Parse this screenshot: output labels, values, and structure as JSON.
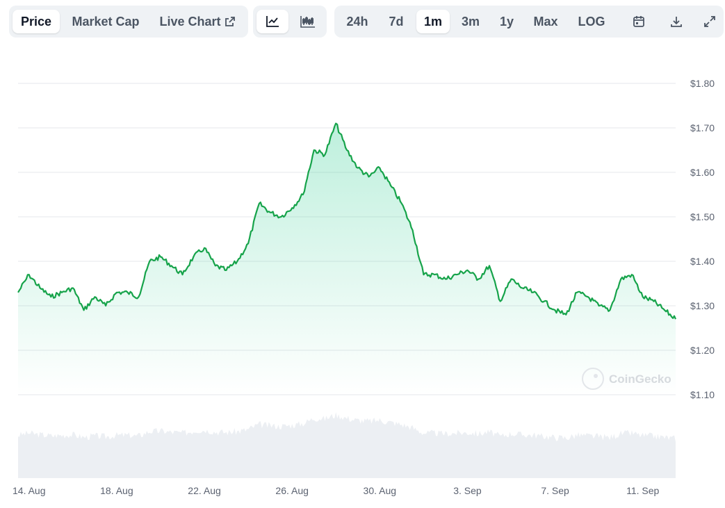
{
  "toolbar": {
    "metric_tabs": [
      {
        "label": "Price",
        "active": true
      },
      {
        "label": "Market Cap",
        "active": false
      },
      {
        "label": "Live Chart",
        "active": false,
        "icon": "external-link-icon"
      }
    ],
    "chart_type_buttons": [
      {
        "icon": "line-chart-icon",
        "active": true
      },
      {
        "icon": "candlestick-icon",
        "active": false
      }
    ],
    "ranges": [
      {
        "label": "24h",
        "active": false
      },
      {
        "label": "7d",
        "active": false
      },
      {
        "label": "1m",
        "active": true
      },
      {
        "label": "3m",
        "active": false
      },
      {
        "label": "1y",
        "active": false
      },
      {
        "label": "Max",
        "active": false
      },
      {
        "label": "LOG",
        "active": false
      }
    ],
    "tools": [
      {
        "icon": "calendar-icon"
      },
      {
        "icon": "download-icon"
      },
      {
        "icon": "expand-icon"
      }
    ]
  },
  "watermark": "CoinGecko",
  "colors": {
    "line": "#16a34a",
    "area_top": "#16c784",
    "volume": "#eceff3",
    "grid": "#e5e7eb",
    "active_bg": "#ffffff",
    "toolbar_bg": "#eff2f5"
  },
  "chart_data": {
    "type": "line",
    "title": "",
    "xlabel": "",
    "ylabel": "",
    "ylim": [
      1.1,
      1.8
    ],
    "y_ticks": [
      "$1.80",
      "$1.70",
      "$1.60",
      "$1.50",
      "$1.40",
      "$1.30",
      "$1.20",
      "$1.10"
    ],
    "y_tick_values": [
      1.8,
      1.7,
      1.6,
      1.5,
      1.4,
      1.3,
      1.2,
      1.1
    ],
    "x_range": [
      "2024-08-13T12:00",
      "2024-09-12T12:00"
    ],
    "x_ticks": [
      "14. Aug",
      "18. Aug",
      "22. Aug",
      "26. Aug",
      "30. Aug",
      "3. Sep",
      "7. Sep",
      "11. Sep"
    ],
    "x_tick_dates": [
      "2024-08-14",
      "2024-08-18",
      "2024-08-22",
      "2024-08-26",
      "2024-08-30",
      "2024-09-03",
      "2024-09-07",
      "2024-09-11"
    ],
    "grid": true,
    "legend": "none",
    "series": [
      {
        "x": [
          "2024-08-13T12:00",
          "2024-08-14T00:00",
          "2024-08-14T12:00",
          "2024-08-15T00:00",
          "2024-08-15T12:00",
          "2024-08-16T00:00",
          "2024-08-16T12:00",
          "2024-08-17T00:00",
          "2024-08-17T12:00",
          "2024-08-18T00:00",
          "2024-08-18T12:00",
          "2024-08-19T00:00",
          "2024-08-19T12:00",
          "2024-08-20T00:00",
          "2024-08-20T12:00",
          "2024-08-21T00:00",
          "2024-08-21T12:00",
          "2024-08-22T00:00",
          "2024-08-22T12:00",
          "2024-08-23T00:00",
          "2024-08-23T12:00",
          "2024-08-24T00:00",
          "2024-08-24T12:00",
          "2024-08-25T00:00",
          "2024-08-25T12:00",
          "2024-08-26T00:00",
          "2024-08-26T12:00",
          "2024-08-27T00:00",
          "2024-08-27T12:00",
          "2024-08-28T00:00",
          "2024-08-28T12:00",
          "2024-08-29T00:00",
          "2024-08-29T12:00",
          "2024-08-30T00:00",
          "2024-08-30T12:00",
          "2024-08-31T00:00",
          "2024-08-31T12:00",
          "2024-09-01T00:00",
          "2024-09-01T12:00",
          "2024-09-02T00:00",
          "2024-09-02T12:00",
          "2024-09-03T00:00",
          "2024-09-03T12:00",
          "2024-09-04T00:00",
          "2024-09-04T12:00",
          "2024-09-05T00:00",
          "2024-09-05T12:00",
          "2024-09-06T00:00",
          "2024-09-06T12:00",
          "2024-09-07T00:00",
          "2024-09-07T12:00",
          "2024-09-08T00:00",
          "2024-09-08T12:00",
          "2024-09-09T00:00",
          "2024-09-09T12:00",
          "2024-09-10T00:00",
          "2024-09-10T12:00",
          "2024-09-11T00:00",
          "2024-09-11T12:00",
          "2024-09-12T00:00",
          "2024-09-12T12:00"
        ],
        "y": [
          1.33,
          1.37,
          1.34,
          1.32,
          1.33,
          1.34,
          1.29,
          1.32,
          1.3,
          1.33,
          1.33,
          1.32,
          1.4,
          1.41,
          1.39,
          1.37,
          1.41,
          1.43,
          1.39,
          1.38,
          1.4,
          1.44,
          1.53,
          1.51,
          1.5,
          1.52,
          1.55,
          1.65,
          1.64,
          1.71,
          1.65,
          1.61,
          1.59,
          1.61,
          1.57,
          1.53,
          1.47,
          1.37,
          1.37,
          1.36,
          1.37,
          1.38,
          1.36,
          1.39,
          1.31,
          1.36,
          1.34,
          1.33,
          1.31,
          1.29,
          1.28,
          1.33,
          1.32,
          1.3,
          1.29,
          1.36,
          1.37,
          1.32,
          1.31,
          1.29,
          1.27
        ]
      }
    ]
  }
}
